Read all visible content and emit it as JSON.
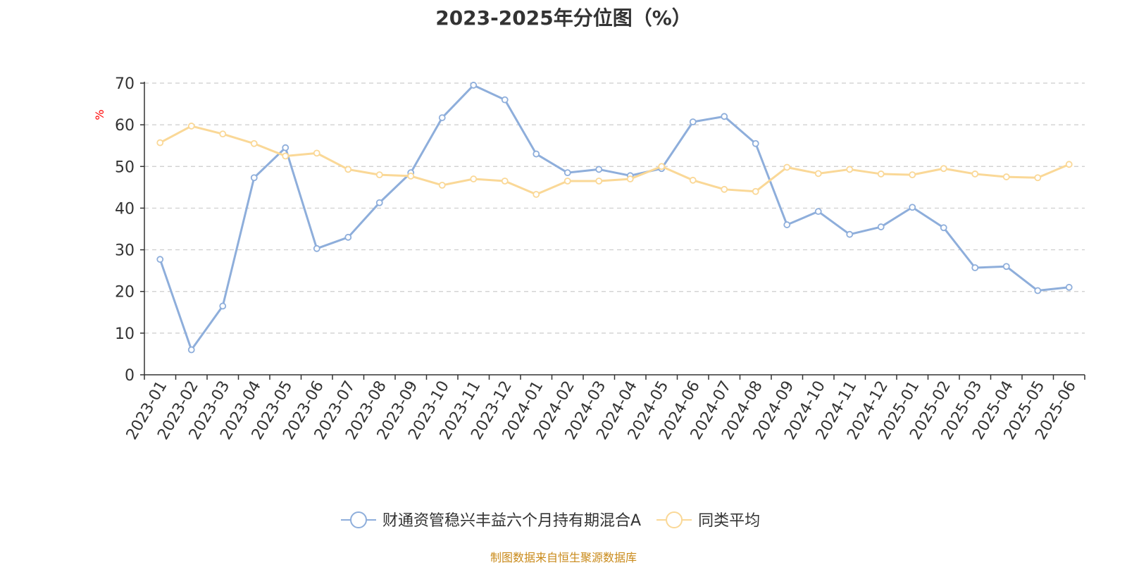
{
  "chart_data": {
    "type": "line",
    "title": "2023-2025年分位图（%）",
    "ylabel": "%",
    "xlabel": "",
    "ylim": [
      0,
      70
    ],
    "yticks": [
      0,
      10,
      20,
      30,
      40,
      50,
      60,
      70
    ],
    "grid": true,
    "legend_position": "bottom",
    "categories": [
      "2023-01",
      "2023-02",
      "2023-03",
      "2023-04",
      "2023-05",
      "2023-06",
      "2023-07",
      "2023-08",
      "2023-09",
      "2023-10",
      "2023-11",
      "2023-12",
      "2024-01",
      "2024-02",
      "2024-03",
      "2024-04",
      "2024-05",
      "2024-06",
      "2024-07",
      "2024-08",
      "2024-09",
      "2024-10",
      "2024-11",
      "2024-12",
      "2025-01",
      "2025-02",
      "2025-03",
      "2025-04",
      "2025-05",
      "2025-06"
    ],
    "series": [
      {
        "name": "财通资管稳兴丰益六个月持有期混合A",
        "color": "#8eaedb",
        "values": [
          27.7,
          6.0,
          16.5,
          47.3,
          54.5,
          30.3,
          33.0,
          41.3,
          48.5,
          61.7,
          69.5,
          66.0,
          53.0,
          48.5,
          49.3,
          47.8,
          49.5,
          60.7,
          62.0,
          55.5,
          36.0,
          39.2,
          33.7,
          35.5,
          40.2,
          35.3,
          25.7,
          26.0,
          20.2,
          21.0
        ]
      },
      {
        "name": "同类平均",
        "color": "#fad897",
        "values": [
          55.7,
          59.7,
          57.8,
          55.5,
          52.5,
          53.2,
          49.3,
          48.0,
          47.7,
          45.5,
          47.0,
          46.5,
          43.3,
          46.5,
          46.5,
          47.0,
          50.0,
          46.7,
          44.5,
          44.0,
          49.8,
          48.3,
          49.3,
          48.2,
          48.0,
          49.5,
          48.2,
          47.5,
          47.3,
          50.5
        ]
      }
    ]
  },
  "source_text": "制图数据来自恒生聚源数据库"
}
